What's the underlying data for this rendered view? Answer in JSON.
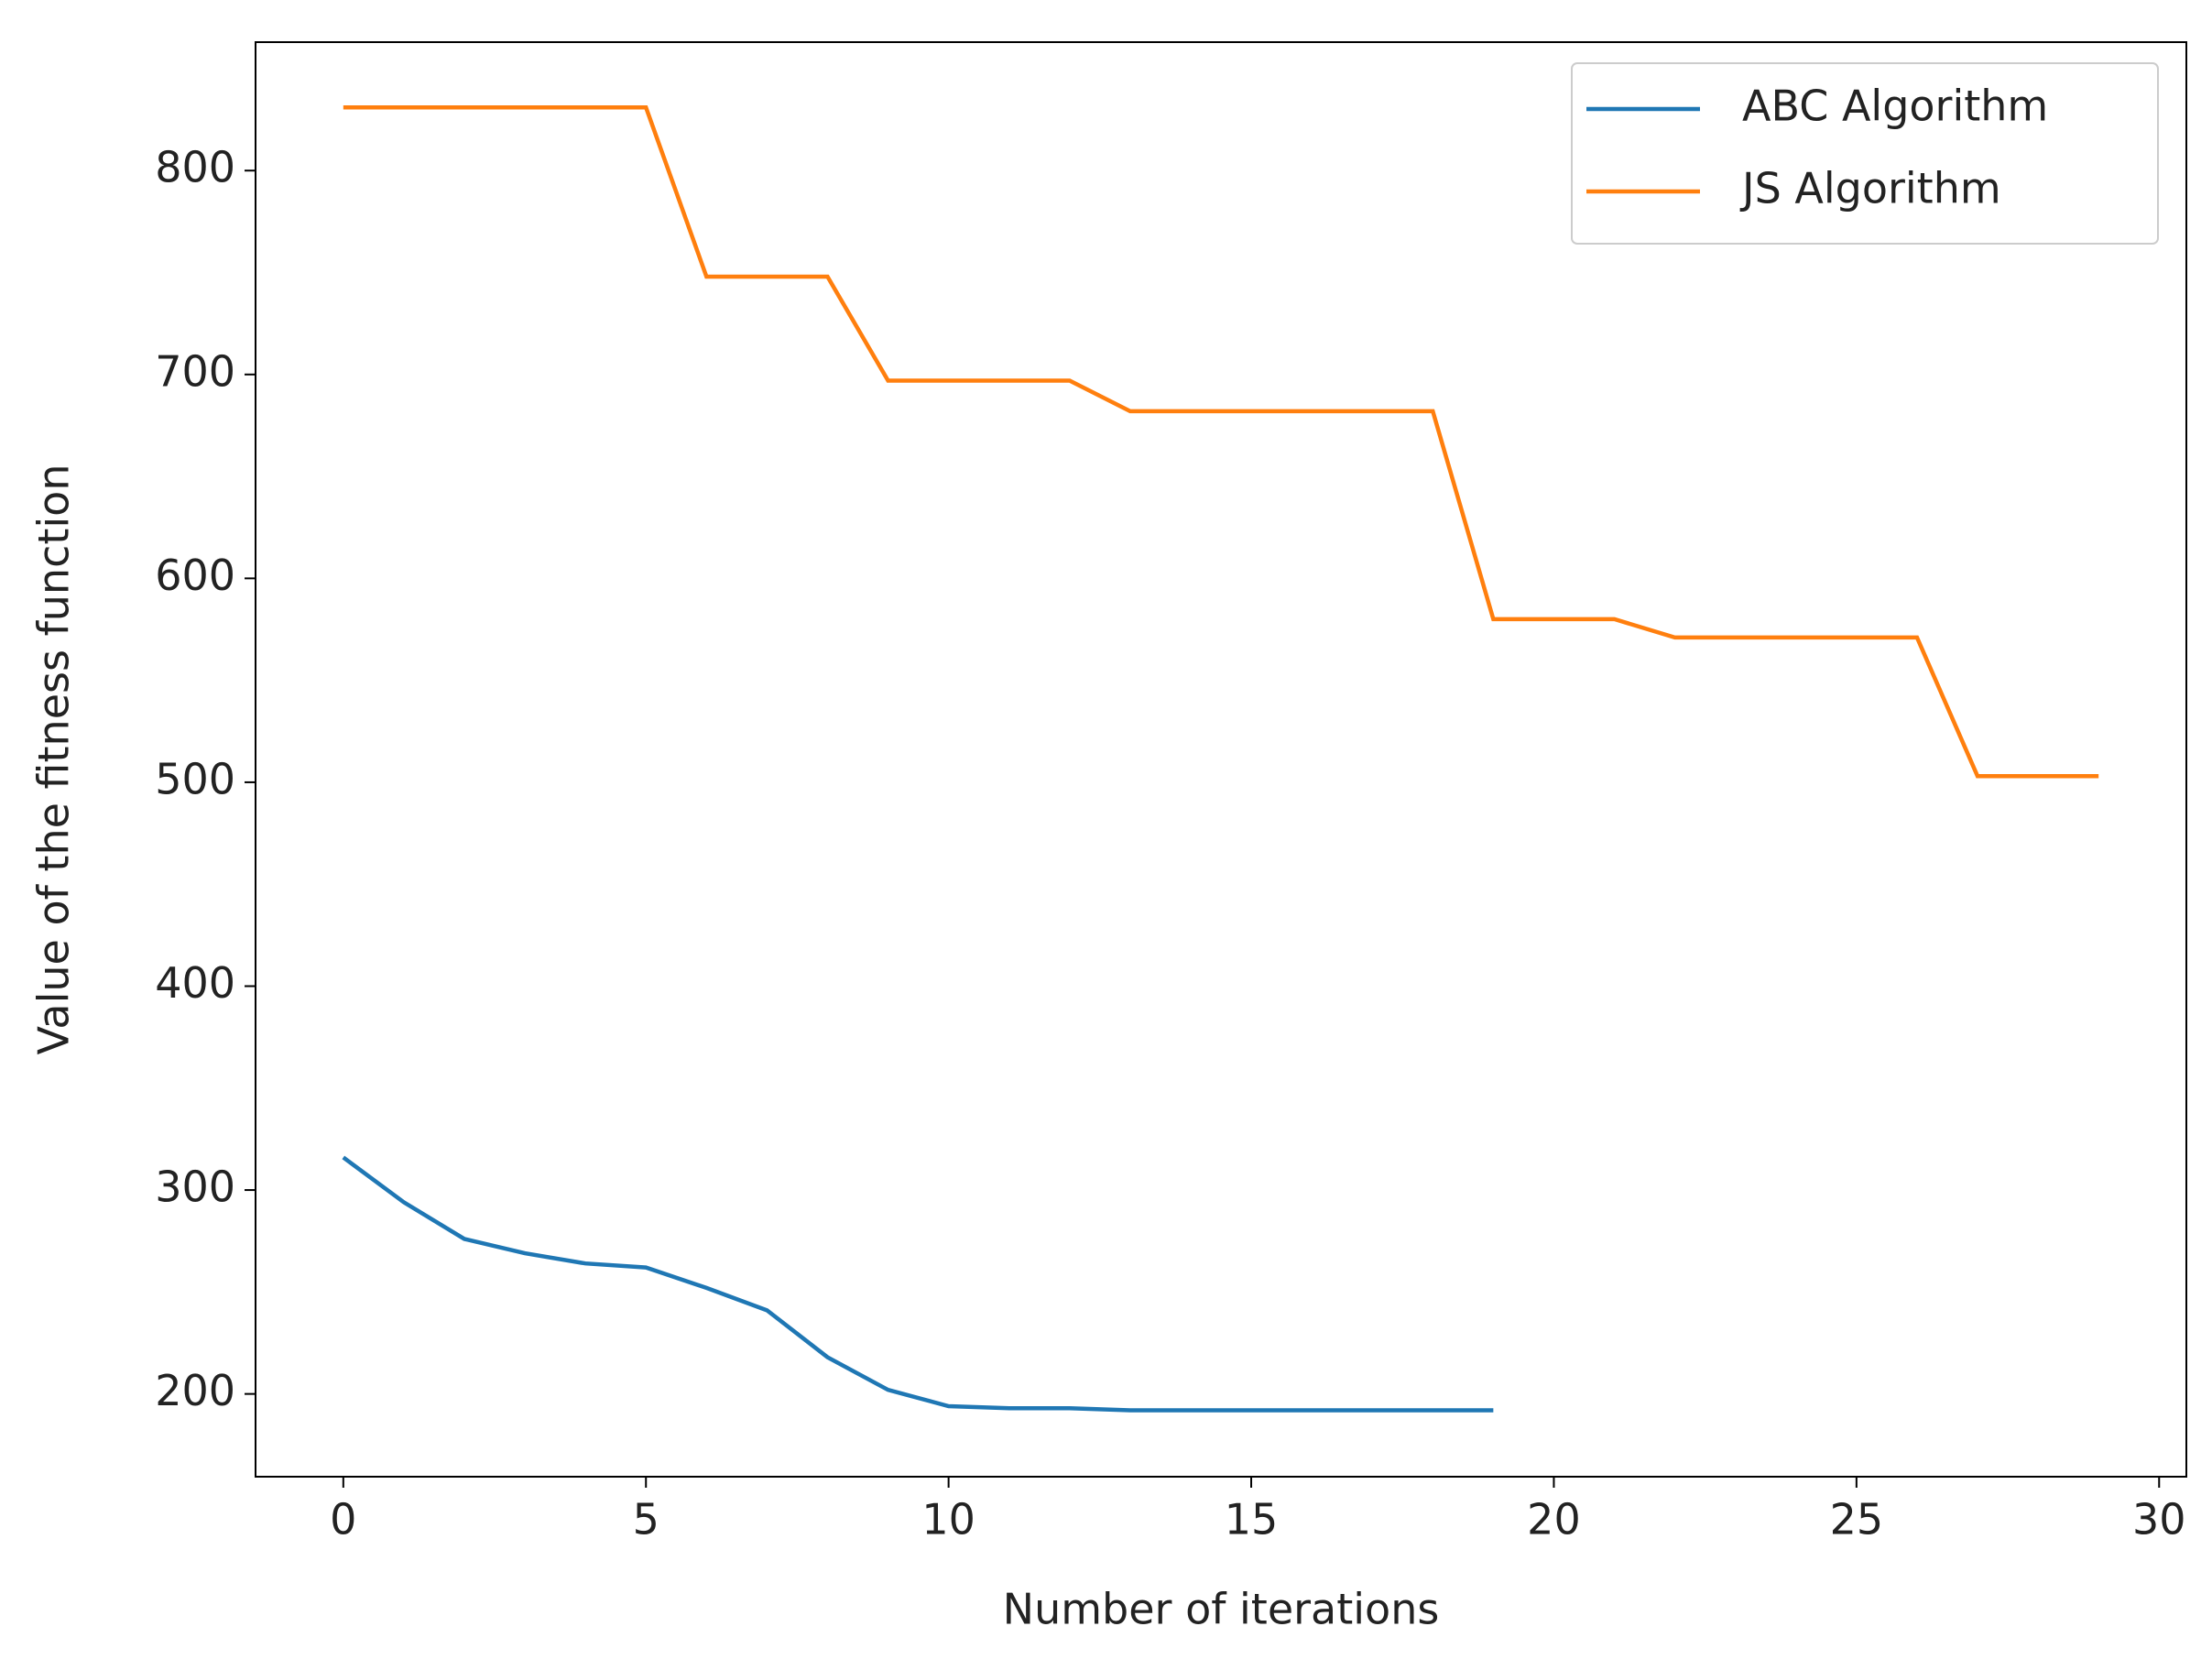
{
  "chart_data": {
    "type": "line",
    "x_label": "Number of iterations",
    "y_label": "Value of the fitness function",
    "x": [
      0,
      1,
      2,
      3,
      4,
      5,
      6,
      7,
      8,
      9,
      10,
      11,
      12,
      13,
      14,
      15,
      16,
      17,
      18,
      19,
      20,
      21,
      22,
      23,
      24,
      25,
      26,
      27,
      28,
      29
    ],
    "series": [
      {
        "name": "ABC Algorithm",
        "color": "#1f77b4",
        "values": [
          316,
          294,
          276,
          269,
          264,
          262,
          252,
          241,
          218,
          202,
          194,
          193,
          193,
          192,
          192,
          192,
          192,
          192,
          192,
          192,
          null,
          null,
          null,
          null,
          null,
          null,
          null,
          null,
          null,
          null
        ]
      },
      {
        "name": "JS Algorithm",
        "color": "#ff7f0e",
        "values": [
          831,
          831,
          831,
          831,
          831,
          831,
          748,
          748,
          748,
          697,
          697,
          697,
          697,
          682,
          682,
          682,
          682,
          682,
          682,
          580,
          580,
          580,
          571,
          571,
          571,
          571,
          571,
          503,
          503,
          503
        ]
      }
    ],
    "xlim": [
      -1.45,
      30.45
    ],
    "xticks": [
      0,
      5,
      10,
      15,
      20,
      25,
      30
    ],
    "ylim": [
      159.4,
      863
    ],
    "yticks": [
      200,
      300,
      400,
      500,
      600,
      700,
      800
    ],
    "legend": "upper right"
  }
}
